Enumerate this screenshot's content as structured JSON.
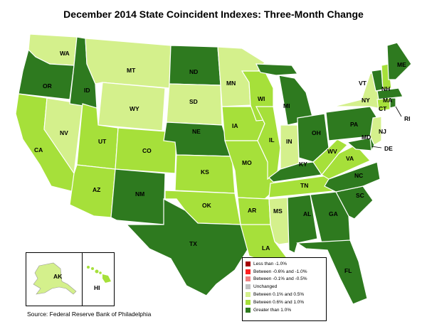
{
  "title": "December 2014 State Coincident Indexes: Three-Month Change",
  "source": "Source: Federal Reserve Bank of Philadelphia",
  "legend": [
    {
      "label": "Less than -1.0%",
      "color": "#a50000"
    },
    {
      "label": "Between -0.6% and -1.0%",
      "color": "#ff2020"
    },
    {
      "label": "Between -0.1% and -0.5%",
      "color": "#f08080"
    },
    {
      "label": "Unchanged",
      "color": "#c0c0c0"
    },
    {
      "label": "Between 0.1% and 0.5%",
      "color": "#d4f08c"
    },
    {
      "label": "Between 0.6% and 1.0%",
      "color": "#a6e03a"
    },
    {
      "label": "Greater than 1.0%",
      "color": "#2e7a1f"
    }
  ],
  "colors": {
    "light": "#d4f08c",
    "medium": "#a6e03a",
    "dark": "#2e7a1f"
  },
  "states": {
    "WA": "light",
    "OR": "dark",
    "ID": "dark",
    "MT": "light",
    "WY": "light",
    "ND": "dark",
    "SD": "light",
    "NE": "dark",
    "MN": "light",
    "IA": "medium",
    "WI": "medium",
    "MI": "dark",
    "IL": "medium",
    "IN": "light",
    "OH": "dark",
    "PA": "dark",
    "NY": "light",
    "VT": "dark",
    "NH": "medium",
    "ME": "dark",
    "MA": "dark",
    "CT": "medium",
    "RI": "dark",
    "NJ": "light",
    "DE": "dark",
    "MD": "dark",
    "WV": "medium",
    "VA": "medium",
    "KY": "dark",
    "TN": "medium",
    "NC": "dark",
    "SC": "dark",
    "GA": "dark",
    "AL": "dark",
    "FL": "dark",
    "MS": "light",
    "LA": "medium",
    "AR": "medium",
    "MO": "medium",
    "KS": "medium",
    "OK": "medium",
    "TX": "dark",
    "NM": "dark",
    "CO": "medium",
    "UT": "medium",
    "AZ": "medium",
    "NV": "light",
    "CA": "medium",
    "AK": "light",
    "HI": "medium"
  }
}
